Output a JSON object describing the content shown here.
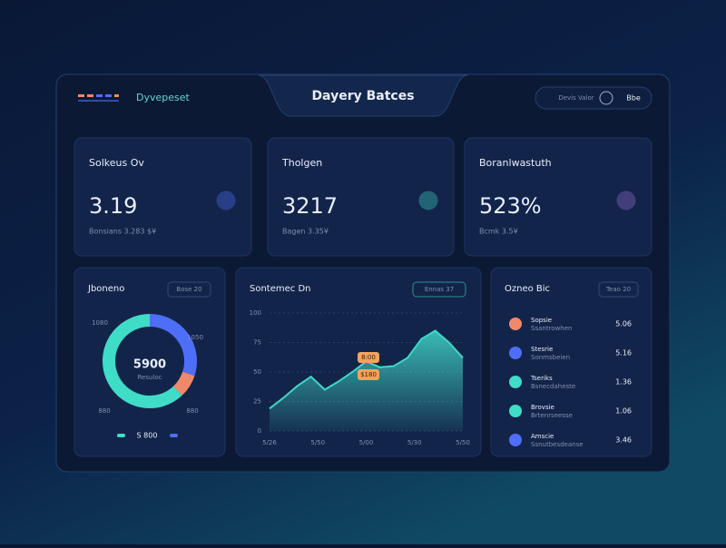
{
  "header": {
    "brand": "Dyvepeset",
    "title": "Dayery Batces",
    "user": "Devis Valor",
    "action": "Bbe"
  },
  "kpis": [
    {
      "label": "Solkeus Ov",
      "value": "3.19",
      "sub": "Bonsians 3.283 $¥"
    },
    {
      "label": "Tholgen",
      "value": "3217",
      "sub": "Bagen 3.35¥"
    },
    {
      "label": "Boranlwastuth",
      "value": "523%",
      "sub": "Bcmk 3.5¥"
    }
  ],
  "chart_data": [
    {
      "type": "pie",
      "title": "Jboneno",
      "badge": "Bose 20",
      "center_text": "5900",
      "center_sub": "Resuloc",
      "values": [
        30,
        8,
        62
      ],
      "colors": [
        "#4f6ef7",
        "#f0896a",
        "#3fdcc8"
      ],
      "outer_labels": [
        "1080",
        "1050",
        "880",
        "880"
      ],
      "legend": "S 800"
    },
    {
      "type": "area",
      "title": "Sontemec Dn",
      "badge": "Ennas 37",
      "x": [
        0,
        1,
        2,
        3,
        4,
        5,
        6,
        7,
        8,
        9,
        10,
        11,
        12,
        13,
        14
      ],
      "values": [
        19,
        28,
        38,
        46,
        35,
        42,
        50,
        59,
        54,
        55,
        62,
        78,
        85,
        75,
        62
      ],
      "xlim": [
        0,
        14
      ],
      "xticks": [
        {
          "value": 0,
          "label": "5/26"
        },
        {
          "value": 3.5,
          "label": "5/50"
        },
        {
          "value": 7,
          "label": "5/00"
        },
        {
          "value": 10.5,
          "label": "5/30"
        },
        {
          "value": 14,
          "label": "5/50"
        }
      ],
      "ylim": [
        0,
        100
      ],
      "yticks": [
        0,
        25,
        50,
        75,
        100
      ],
      "grid": true,
      "color": "#3fd6c8",
      "annotations": [
        "8:00",
        "$180"
      ]
    }
  ],
  "list": {
    "title": "Ozneo Bic",
    "badge": "Teao 20",
    "items": [
      {
        "label": "Sopsie",
        "sub": "Ssantrowhen",
        "value": "5.06",
        "color": "#f0896a"
      },
      {
        "label": "Stesrie",
        "sub": "Sonmsbeien",
        "value": "5.16",
        "color": "#4f6ef7"
      },
      {
        "label": "Tseriks",
        "sub": "Bsnecdaheste",
        "value": "1.36",
        "color": "#3fdcc8"
      },
      {
        "label": "Brovsie",
        "sub": "Brtenrseesse",
        "value": "1.06",
        "color": "#3fdcc8"
      },
      {
        "label": "Amscie",
        "sub": "Ssnutbesdeanse",
        "value": "3.46",
        "color": "#4f6ef7"
      }
    ]
  }
}
